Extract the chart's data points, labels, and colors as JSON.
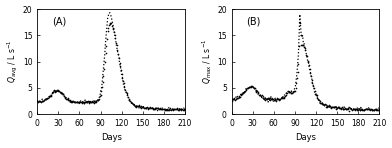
{
  "title_A": "(A)",
  "title_B": "(B)",
  "xlabel": "Days",
  "xlim": [
    0,
    210
  ],
  "ylim": [
    0,
    20
  ],
  "yticks": [
    0,
    5,
    10,
    15,
    20
  ],
  "xticks": [
    0,
    30,
    60,
    90,
    120,
    150,
    180,
    210
  ],
  "obs_color": "black",
  "ann_color": "black",
  "obs_marker": "o",
  "obs_markersize": 1.2,
  "ann_linestyle": "dotted",
  "ann_linewidth": 0.9,
  "background_color": "white",
  "panel_bg": "white",
  "tick_labelsize": 5.5,
  "xlabel_fontsize": 6,
  "ylabel_fontsize": 5.5,
  "label_fontsize": 7
}
